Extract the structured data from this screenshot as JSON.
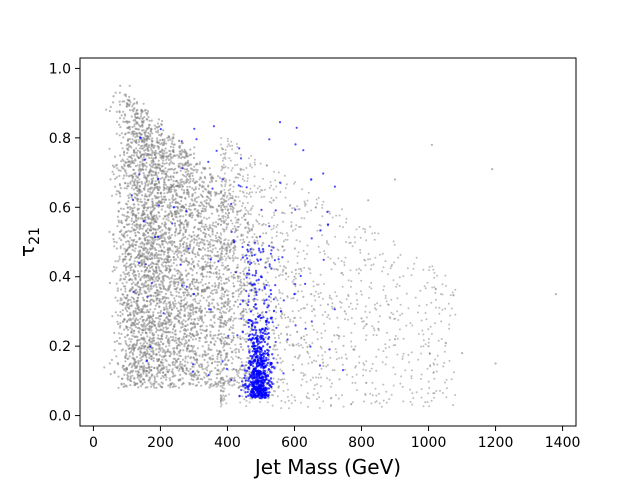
{
  "chart_data": {
    "type": "scatter",
    "xlabel": "Jet Mass (GeV)",
    "ylabel": "τ",
    "ylabel_subscript": "21",
    "xlim": [
      -40,
      1440
    ],
    "ylim": [
      -0.03,
      1.03
    ],
    "xticks": [
      0,
      200,
      400,
      600,
      800,
      1000,
      1200,
      1400
    ],
    "xtick_labels": [
      "0",
      "200",
      "400",
      "600",
      "800",
      "1000",
      "1200",
      "1400"
    ],
    "yticks": [
      0.0,
      0.2,
      0.4,
      0.6,
      0.8,
      1.0
    ],
    "ytick_labels": [
      "0.0",
      "0.2",
      "0.4",
      "0.6",
      "0.8",
      "1.0"
    ],
    "grid": false,
    "legend": "none",
    "series": [
      {
        "color": "#808080",
        "description_points": "dense background cloud",
        "core_x": [
          50,
          450
        ],
        "core_y": [
          0.1,
          0.97
        ],
        "tail_x": [
          450,
          1400
        ],
        "tail_y": [
          0.0,
          0.8
        ],
        "sample_points": [
          [
            60,
            0.92
          ],
          [
            80,
            0.95
          ],
          [
            100,
            0.9
          ],
          [
            120,
            0.85
          ],
          [
            150,
            0.8
          ],
          [
            200,
            0.75
          ],
          [
            250,
            0.7
          ],
          [
            300,
            0.65
          ],
          [
            350,
            0.6
          ],
          [
            400,
            0.55
          ],
          [
            450,
            0.5
          ],
          [
            500,
            0.45
          ],
          [
            550,
            0.42
          ],
          [
            600,
            0.4
          ],
          [
            650,
            0.35
          ],
          [
            700,
            0.32
          ],
          [
            750,
            0.3
          ],
          [
            800,
            0.28
          ],
          [
            850,
            0.25
          ],
          [
            900,
            0.22
          ],
          [
            1000,
            0.2
          ],
          [
            1100,
            0.18
          ],
          [
            1200,
            0.15
          ],
          [
            1380,
            0.35
          ],
          [
            1010,
            0.78
          ],
          [
            1190,
            0.71
          ],
          [
            900,
            0.68
          ],
          [
            820,
            0.62
          ]
        ]
      },
      {
        "color": "#0000ff",
        "description_points": "signal cluster near 500 GeV",
        "core_x": [
          450,
          540
        ],
        "core_y": [
          0.05,
          0.3
        ],
        "sample_points": [
          [
            490,
            0.1
          ],
          [
            500,
            0.12
          ],
          [
            510,
            0.15
          ],
          [
            480,
            0.2
          ],
          [
            520,
            0.18
          ],
          [
            495,
            0.06
          ],
          [
            505,
            0.25
          ],
          [
            470,
            0.3
          ],
          [
            530,
            0.28
          ],
          [
            500,
            0.4
          ],
          [
            140,
            0.8
          ],
          [
            150,
            0.56
          ],
          [
            240,
            0.6
          ],
          [
            350,
            0.45
          ],
          [
            650,
            0.68
          ],
          [
            700,
            0.55
          ],
          [
            600,
            0.35
          ],
          [
            560,
            0.3
          ],
          [
            420,
            0.5
          ],
          [
            300,
            0.35
          ]
        ]
      }
    ]
  }
}
